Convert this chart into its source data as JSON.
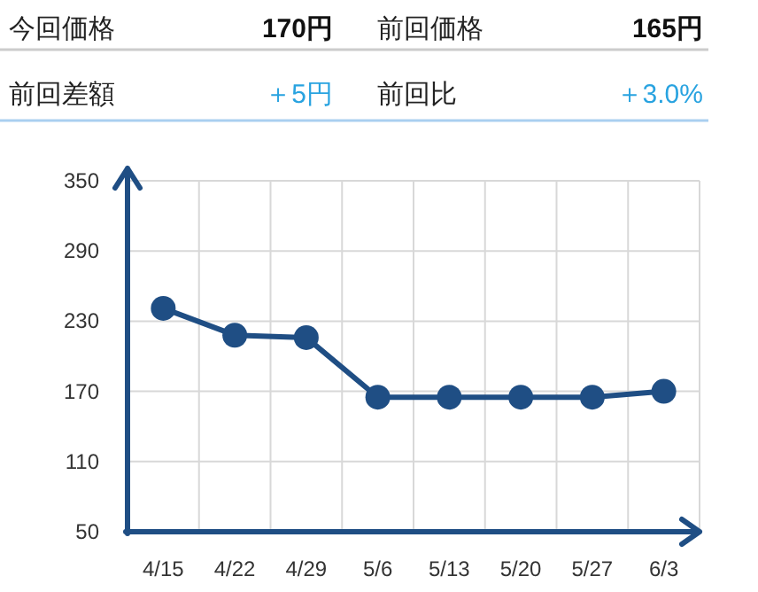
{
  "chart_data": [
    {
      "type": "other",
      "annotations": [
        "今回価格",
        "170円",
        "前回価格",
        "165円",
        "前回差額",
        "＋5円",
        "前回比",
        "＋3.0%"
      ]
    },
    {
      "type": "line",
      "categories": [
        "4/15",
        "4/22",
        "4/29",
        "5/6",
        "5/13",
        "5/20",
        "5/27",
        "6/3"
      ],
      "series": [
        {
          "color": "#1f4e84",
          "values": [
            241,
            218,
            216,
            165,
            165,
            165,
            165,
            170
          ]
        }
      ],
      "ylim": [
        50,
        350
      ],
      "yticks": [
        50,
        110,
        170,
        230,
        290,
        350
      ],
      "grid": true,
      "marker": "circle",
      "line_style": "solid"
    }
  ]
}
